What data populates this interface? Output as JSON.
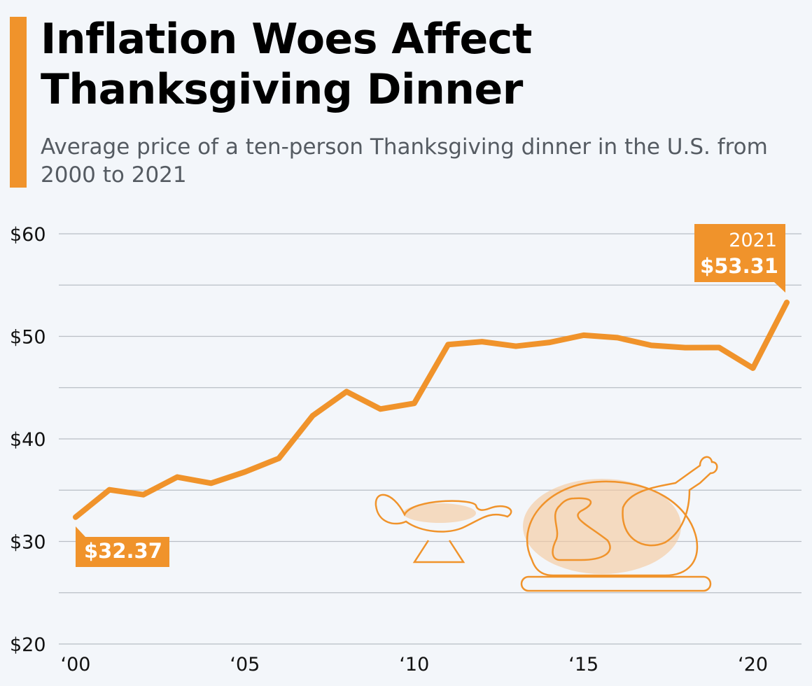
{
  "title": "Inflation Woes Affect Thanksgiving Dinner",
  "subtitle": "Average price of a ten-person Thanksgiving dinner in the U.S. from 2000 to 2021",
  "colors": {
    "accent": "#f0932b",
    "text": "#000000",
    "subtitle": "#555b62",
    "background": "#f3f6fa",
    "grid": "#b9bec5"
  },
  "chart_data": {
    "type": "line",
    "title": "Inflation Woes Affect Thanksgiving Dinner",
    "subtitle": "Average price of a ten-person Thanksgiving dinner in the U.S. from 2000 to 2021",
    "xlabel": "",
    "ylabel": "",
    "ylim": [
      20,
      60
    ],
    "xlim": [
      2000,
      2021
    ],
    "y_ticks": [
      20,
      30,
      40,
      50,
      60
    ],
    "y_tick_labels": [
      "$20",
      "$30",
      "$40",
      "$50",
      "$60"
    ],
    "x_ticks": [
      2000,
      2005,
      2010,
      2015,
      2020
    ],
    "x_tick_labels": [
      "‘00",
      "‘05",
      "‘10",
      "‘15",
      "‘20"
    ],
    "grid": true,
    "x": [
      2000,
      2001,
      2002,
      2003,
      2004,
      2005,
      2006,
      2007,
      2008,
      2009,
      2010,
      2011,
      2012,
      2013,
      2014,
      2015,
      2016,
      2017,
      2018,
      2019,
      2020,
      2021
    ],
    "series": [
      {
        "name": "Average price",
        "values": [
          32.37,
          35.04,
          34.56,
          36.28,
          35.68,
          36.78,
          38.1,
          42.26,
          44.61,
          42.91,
          43.47,
          49.2,
          49.48,
          49.04,
          49.41,
          50.11,
          49.87,
          49.12,
          48.9,
          48.91,
          46.9,
          53.31
        ]
      }
    ],
    "annotations": [
      {
        "x": 2000,
        "year": "",
        "label": "$32.37"
      },
      {
        "x": 2021,
        "year": "2021",
        "label": "$53.31"
      }
    ]
  }
}
